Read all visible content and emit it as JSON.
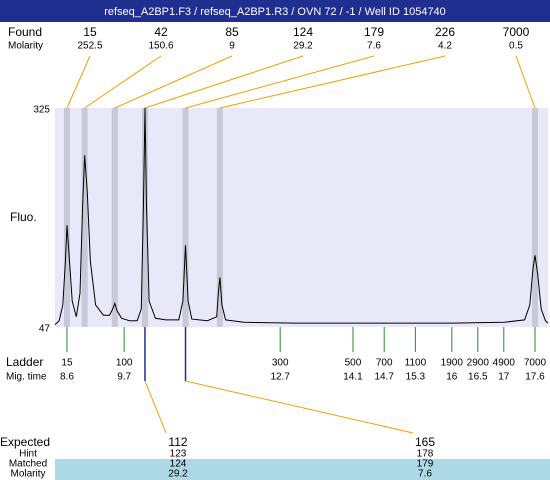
{
  "chart_data": {
    "type": "line",
    "title": "refseq_A2BP1.F3 / refseq_A2BP1.R3 / OVN 72 / -1 / Well ID 1054740",
    "ylabel": "Fluo.",
    "ylim": [
      47,
      325
    ],
    "yticks": [
      47,
      325
    ],
    "xlim": [
      8.37,
      17.85
    ],
    "color": "#000000",
    "x": [
      8.37,
      8.45,
      8.52,
      8.57,
      8.6,
      8.64,
      8.7,
      8.78,
      8.85,
      8.9,
      8.94,
      8.99,
      9.05,
      9.15,
      9.3,
      9.42,
      9.48,
      9.52,
      9.56,
      9.65,
      9.8,
      9.95,
      10.03,
      10.07,
      10.1,
      10.13,
      10.18,
      10.3,
      10.5,
      10.75,
      10.83,
      10.88,
      10.93,
      11.0,
      11.3,
      11.48,
      11.51,
      11.54,
      11.58,
      11.65,
      12.0,
      13.0,
      14.0,
      15.0,
      16.0,
      17.0,
      17.4,
      17.5,
      17.56,
      17.6,
      17.65,
      17.72,
      17.8,
      17.85
    ],
    "values": [
      50,
      55,
      75,
      130,
      176,
      140,
      80,
      60,
      90,
      200,
      265,
      220,
      130,
      75,
      62,
      62,
      70,
      77,
      68,
      58,
      55,
      55,
      70,
      200,
      325,
      200,
      80,
      58,
      56,
      56,
      80,
      151,
      80,
      57,
      55,
      60,
      90,
      110,
      75,
      56,
      53,
      52,
      52,
      52,
      52,
      53,
      56,
      75,
      120,
      138,
      115,
      70,
      55,
      52
    ],
    "found": {
      "label": "Found",
      "sizes": [
        15,
        42,
        85,
        124,
        179,
        226,
        7000
      ],
      "molarity_label": "Molarity",
      "molarity": [
        252.5,
        150.6,
        9,
        29.2,
        7.6,
        4.2,
        0.5
      ],
      "x": [
        8.6,
        8.94,
        9.52,
        10.1,
        10.88,
        11.54,
        17.6
      ],
      "color": "#f0a000",
      "band_color": "#c8c8d8"
    },
    "ladder": {
      "label": "Ladder",
      "sizes": [
        15,
        100,
        300,
        500,
        700,
        1100,
        1900,
        2900,
        4900,
        7000
      ],
      "time_label": "Mig. time",
      "times": [
        8.6,
        9.7,
        12.7,
        14.1,
        14.7,
        15.3,
        16,
        16.5,
        17,
        17.6
      ],
      "color": "#2a8a2a"
    },
    "expected": {
      "rows": [
        {
          "label": "Expected",
          "values": [
            112,
            165
          ]
        },
        {
          "label": "Hint",
          "values": [
            123,
            178
          ]
        },
        {
          "label": "Matched",
          "values": [
            124,
            179
          ]
        },
        {
          "label": "Molarity",
          "values": [
            29.2,
            7.6
          ]
        }
      ]
    }
  }
}
